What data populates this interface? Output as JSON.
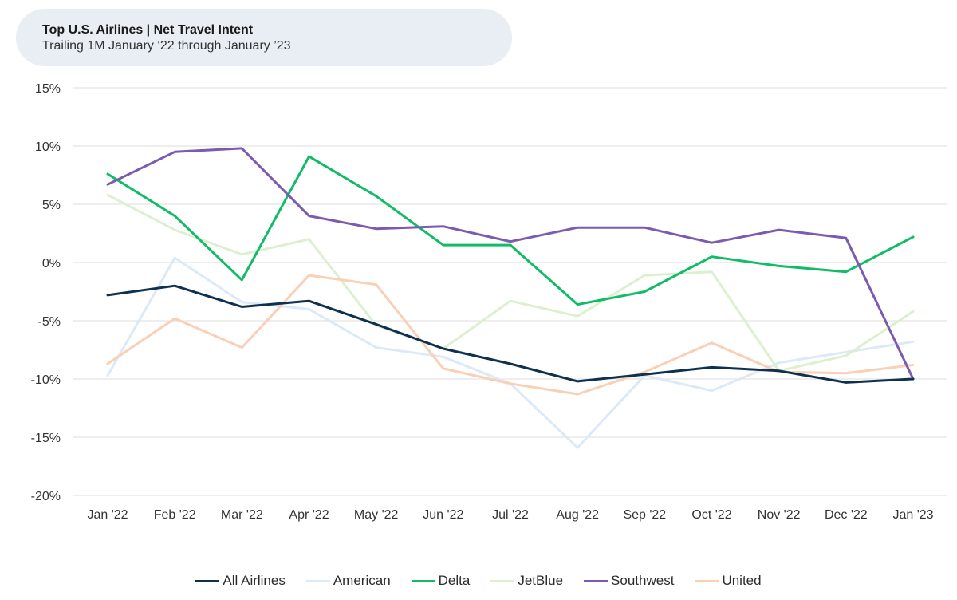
{
  "chart_data": {
    "type": "line",
    "title": "Top U.S. Airlines | Net Travel Intent",
    "subtitle": "Trailing 1M January ‘22 through January ’23",
    "xlabel": "",
    "ylabel": "",
    "categories": [
      "Jan '22",
      "Feb '22",
      "Mar '22",
      "Apr '22",
      "May '22",
      "Jun '22",
      "Jul '22",
      "Aug '22",
      "Sep '22",
      "Oct '22",
      "Nov '22",
      "Dec '22",
      "Jan '23"
    ],
    "ylim": [
      -20,
      15
    ],
    "yticks": [
      15,
      10,
      5,
      0,
      -5,
      -10,
      -15,
      -20
    ],
    "ytick_labels": [
      "15%",
      "10%",
      "5%",
      "0%",
      "-5%",
      "-10%",
      "-15%",
      "-20%"
    ],
    "grid": true,
    "legend_position": "bottom",
    "series": [
      {
        "name": "American",
        "color": "#dce9f6",
        "values": [
          -9.7,
          0.4,
          -3.4,
          -4.0,
          -7.3,
          -8.1,
          -10.4,
          -15.9,
          -9.7,
          -11.0,
          -8.6,
          -7.7,
          -6.8
        ]
      },
      {
        "name": "JetBlue",
        "color": "#dcf0cf",
        "values": [
          5.8,
          2.8,
          0.7,
          2.0,
          -5.4,
          -7.4,
          -3.3,
          -4.6,
          -1.1,
          -0.8,
          -9.3,
          -8.0,
          -4.2
        ]
      },
      {
        "name": "United",
        "color": "#f9cfb5",
        "values": [
          -8.7,
          -4.8,
          -7.3,
          -1.1,
          -1.9,
          -9.1,
          -10.4,
          -11.3,
          -9.4,
          -6.9,
          -9.4,
          -9.5,
          -8.8
        ]
      },
      {
        "name": "Delta",
        "color": "#11bc66",
        "values": [
          7.6,
          4.0,
          -1.5,
          9.1,
          5.7,
          1.5,
          1.5,
          -3.6,
          -2.5,
          0.5,
          -0.3,
          -0.8,
          2.2
        ]
      },
      {
        "name": "Southwest",
        "color": "#7b5bb0",
        "values": [
          6.7,
          9.5,
          9.8,
          4.0,
          2.9,
          3.1,
          1.8,
          3.0,
          3.0,
          1.7,
          2.8,
          2.1,
          -10.0
        ]
      },
      {
        "name": "All Airlines",
        "color": "#0e3150",
        "values": [
          -2.8,
          -2.0,
          -3.8,
          -3.3,
          -5.3,
          -7.4,
          -8.7,
          -10.2,
          -9.6,
          -9.0,
          -9.3,
          -10.3,
          -10.0
        ]
      }
    ],
    "legend_order": [
      "All Airlines",
      "American",
      "Delta",
      "JetBlue",
      "Southwest",
      "United"
    ]
  }
}
